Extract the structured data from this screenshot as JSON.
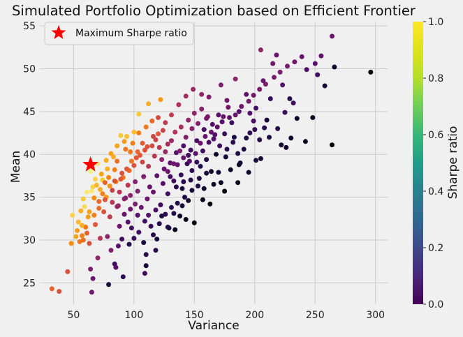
{
  "chart_data": {
    "type": "scatter",
    "title": "Simulated Portfolio Optimization based on Efficient Frontier",
    "xlabel": "Variance",
    "ylabel": "Mean",
    "xlim": [
      22,
      310
    ],
    "ylim": [
      22.5,
      55.5
    ],
    "xticks": [
      50,
      100,
      150,
      200,
      250,
      300
    ],
    "yticks": [
      25,
      30,
      35,
      40,
      45,
      50,
      55
    ],
    "grid": true,
    "legend": {
      "position": "top-left",
      "label": "Maximum Sharpe ratio"
    },
    "colorbar": {
      "label": "Sharpe ratio",
      "range": [
        0,
        1
      ],
      "ticks": [
        "0.0",
        "0.2",
        "0.4",
        "0.6",
        "0.8",
        "1.0"
      ],
      "colormap_scatter": "inferno",
      "colormap_bar": "viridis"
    },
    "highlight": {
      "x": 64,
      "y": 38.8,
      "color": "#ff0000",
      "marker": "star"
    },
    "points": [
      [
        32,
        24.3,
        0.65
      ],
      [
        38,
        24.0,
        0.6
      ],
      [
        45,
        26.3,
        0.6
      ],
      [
        65,
        23.9,
        0.3
      ],
      [
        64,
        26.6,
        0.35
      ],
      [
        66,
        25.5,
        0.3
      ],
      [
        79,
        24.8,
        0.1
      ],
      [
        70,
        27.9,
        0.4
      ],
      [
        84,
        27.2,
        0.2
      ],
      [
        85,
        26.8,
        0.25
      ],
      [
        48,
        29.6,
        0.75
      ],
      [
        55,
        29.8,
        0.7
      ],
      [
        58,
        30.0,
        0.68
      ],
      [
        52,
        30.4,
        0.8
      ],
      [
        60,
        31.5,
        0.7
      ],
      [
        49,
        32.9,
        0.9
      ],
      [
        54,
        32.1,
        0.85
      ],
      [
        57,
        31.7,
        0.82
      ],
      [
        62,
        32.7,
        0.78
      ],
      [
        56,
        33.4,
        0.82
      ],
      [
        59,
        33.9,
        0.92
      ],
      [
        61,
        35.6,
        0.95
      ],
      [
        65,
        35.7,
        0.95
      ],
      [
        64,
        38.0,
        0.97
      ],
      [
        66,
        38.3,
        0.98
      ],
      [
        70,
        38.9,
        0.94
      ],
      [
        68,
        37.1,
        0.9
      ],
      [
        74,
        37.0,
        0.88
      ],
      [
        78,
        38.3,
        0.83
      ],
      [
        83,
        39.7,
        0.82
      ],
      [
        89,
        42.2,
        0.88
      ],
      [
        94,
        42.1,
        0.86
      ],
      [
        100,
        42.6,
        0.86
      ],
      [
        104,
        44.7,
        0.88
      ],
      [
        112,
        45.9,
        0.82
      ],
      [
        122,
        46.4,
        0.78
      ],
      [
        66,
        36.2,
        0.9
      ],
      [
        72,
        35.9,
        0.82
      ],
      [
        77,
        35.0,
        0.78
      ],
      [
        80,
        36.3,
        0.77
      ],
      [
        85,
        36.8,
        0.74
      ],
      [
        91,
        37.3,
        0.7
      ],
      [
        96,
        38.1,
        0.68
      ],
      [
        98,
        39.2,
        0.7
      ],
      [
        103,
        40.3,
        0.66
      ],
      [
        107,
        41.3,
        0.63
      ],
      [
        111,
        40.9,
        0.6
      ],
      [
        116,
        42.1,
        0.56
      ],
      [
        120,
        44.3,
        0.58
      ],
      [
        126,
        43.7,
        0.52
      ],
      [
        131,
        44.6,
        0.52
      ],
      [
        137,
        45.8,
        0.48
      ],
      [
        143,
        46.8,
        0.44
      ],
      [
        149,
        47.6,
        0.42
      ],
      [
        156,
        47.0,
        0.4
      ],
      [
        162,
        46.7,
        0.36
      ],
      [
        172,
        48.1,
        0.35
      ],
      [
        177,
        46.3,
        0.32
      ],
      [
        184,
        48.8,
        0.4
      ],
      [
        193,
        47.0,
        0.28
      ],
      [
        196,
        44.8,
        0.25
      ],
      [
        199,
        43.9,
        0.22
      ],
      [
        201,
        45.4,
        0.2
      ],
      [
        205,
        52.2,
        0.4
      ],
      [
        207,
        48.6,
        0.3
      ],
      [
        213,
        46.5,
        0.18
      ],
      [
        215,
        50.6,
        0.32
      ],
      [
        218,
        51.6,
        0.3
      ],
      [
        223,
        48.1,
        0.25
      ],
      [
        229,
        46.5,
        0.15
      ],
      [
        239,
        51.4,
        0.3
      ],
      [
        252,
        49.3,
        0.2
      ],
      [
        255,
        51.5,
        0.28
      ],
      [
        258,
        48.0,
        0.1
      ],
      [
        264,
        53.8,
        0.3
      ],
      [
        266,
        50.2,
        0.08
      ],
      [
        296,
        49.6,
        0.02
      ],
      [
        264,
        41.1,
        0.01
      ],
      [
        248,
        44.3,
        0.05
      ],
      [
        242,
        41.5,
        0.05
      ],
      [
        235,
        44.2,
        0.06
      ],
      [
        230,
        41.9,
        0.07
      ],
      [
        226,
        40.8,
        0.07
      ],
      [
        222,
        41.1,
        0.08
      ],
      [
        210,
        44.0,
        0.1
      ],
      [
        205,
        39.5,
        0.08
      ],
      [
        201,
        39.3,
        0.1
      ],
      [
        193,
        41.9,
        0.12
      ],
      [
        188,
        39.0,
        0.1
      ],
      [
        183,
        42.0,
        0.12
      ],
      [
        176,
        39.7,
        0.1
      ],
      [
        172,
        36.7,
        0.06
      ],
      [
        164,
        38.0,
        0.08
      ],
      [
        160,
        37.8,
        0.1
      ],
      [
        153,
        36.3,
        0.12
      ],
      [
        148,
        35.8,
        0.1
      ],
      [
        145,
        34.6,
        0.08
      ],
      [
        140,
        36.0,
        0.12
      ],
      [
        138,
        32.8,
        0.08
      ],
      [
        134,
        31.2,
        0.06
      ],
      [
        129,
        31.4,
        0.09
      ],
      [
        123,
        32.8,
        0.12
      ],
      [
        116,
        30.6,
        0.15
      ],
      [
        110,
        28.3,
        0.15
      ],
      [
        104,
        30.9,
        0.2
      ],
      [
        98,
        31.4,
        0.2
      ],
      [
        95,
        32.1,
        0.25
      ],
      [
        90,
        30.1,
        0.2
      ],
      [
        87,
        29.3,
        0.25
      ],
      [
        81,
        28.8,
        0.35
      ],
      [
        78,
        30.4,
        0.4
      ],
      [
        72,
        30.2,
        0.5
      ],
      [
        68,
        31.8,
        0.62
      ],
      [
        75,
        33.3,
        0.6
      ],
      [
        80,
        32.7,
        0.52
      ],
      [
        86,
        33.9,
        0.45
      ],
      [
        92,
        34.8,
        0.4
      ],
      [
        97,
        35.2,
        0.38
      ],
      [
        101,
        36.8,
        0.38
      ],
      [
        108,
        37.4,
        0.35
      ],
      [
        113,
        36.2,
        0.3
      ],
      [
        119,
        37.5,
        0.28
      ],
      [
        125,
        38.3,
        0.3
      ],
      [
        130,
        39.0,
        0.26
      ],
      [
        135,
        40.2,
        0.25
      ],
      [
        141,
        41.0,
        0.24
      ],
      [
        147,
        40.5,
        0.2
      ],
      [
        152,
        41.6,
        0.22
      ],
      [
        158,
        42.9,
        0.23
      ],
      [
        165,
        43.5,
        0.24
      ],
      [
        170,
        44.6,
        0.26
      ],
      [
        175,
        42.4,
        0.18
      ],
      [
        181,
        43.7,
        0.2
      ],
      [
        187,
        45.0,
        0.24
      ],
      [
        150,
        32.0,
        0.02
      ],
      [
        163,
        34.2,
        0.02
      ],
      [
        180,
        38.2,
        0.05
      ],
      [
        168,
        40.0,
        0.08
      ],
      [
        160,
        39.4,
        0.12
      ],
      [
        155,
        38.6,
        0.14
      ],
      [
        144,
        38.9,
        0.18
      ],
      [
        139,
        37.6,
        0.18
      ],
      [
        133,
        36.9,
        0.2
      ],
      [
        128,
        35.4,
        0.2
      ],
      [
        122,
        34.1,
        0.2
      ],
      [
        118,
        33.5,
        0.22
      ],
      [
        112,
        32.9,
        0.26
      ],
      [
        106,
        33.8,
        0.3
      ],
      [
        101,
        34.2,
        0.34
      ],
      [
        95,
        36.4,
        0.5
      ],
      [
        90,
        37.8,
        0.6
      ],
      [
        86,
        39.2,
        0.68
      ],
      [
        93,
        40.6,
        0.7
      ],
      [
        99,
        41.3,
        0.72
      ],
      [
        104,
        42.5,
        0.72
      ],
      [
        110,
        43.2,
        0.7
      ],
      [
        115,
        43.9,
        0.66
      ],
      [
        118,
        41.7,
        0.55
      ],
      [
        124,
        42.8,
        0.55
      ],
      [
        128,
        41.2,
        0.45
      ],
      [
        134,
        42.6,
        0.48
      ],
      [
        139,
        43.2,
        0.46
      ],
      [
        145,
        44.0,
        0.4
      ],
      [
        150,
        44.8,
        0.4
      ],
      [
        156,
        45.3,
        0.38
      ],
      [
        161,
        44.4,
        0.34
      ],
      [
        166,
        41.8,
        0.25
      ],
      [
        171,
        41.0,
        0.2
      ],
      [
        177,
        40.6,
        0.15
      ],
      [
        182,
        41.4,
        0.16
      ],
      [
        186,
        40.1,
        0.14
      ],
      [
        191,
        40.6,
        0.12
      ],
      [
        196,
        42.5,
        0.16
      ],
      [
        200,
        42.9,
        0.18
      ],
      [
        204,
        41.7,
        0.14
      ],
      [
        208,
        43.1,
        0.15
      ],
      [
        212,
        42.0,
        0.12
      ],
      [
        219,
        43.0,
        0.14
      ],
      [
        225,
        44.9,
        0.18
      ],
      [
        232,
        46.0,
        0.2
      ],
      [
        187,
        38.8,
        0.08
      ],
      [
        170,
        37.9,
        0.1
      ],
      [
        166,
        36.5,
        0.06
      ],
      [
        158,
        36.0,
        0.08
      ],
      [
        154,
        37.2,
        0.12
      ],
      [
        147,
        37.0,
        0.14
      ],
      [
        142,
        35.0,
        0.12
      ],
      [
        136,
        34.3,
        0.14
      ],
      [
        131,
        33.8,
        0.16
      ],
      [
        126,
        33.0,
        0.16
      ],
      [
        121,
        31.9,
        0.15
      ],
      [
        114,
        31.6,
        0.18
      ],
      [
        109,
        32.2,
        0.2
      ],
      [
        103,
        32.9,
        0.24
      ],
      [
        97,
        33.6,
        0.3
      ],
      [
        93,
        34.9,
        0.36
      ],
      [
        88,
        35.6,
        0.5
      ],
      [
        84,
        36.9,
        0.6
      ],
      [
        82,
        34.4,
        0.5
      ],
      [
        76,
        34.7,
        0.62
      ],
      [
        71,
        33.7,
        0.68
      ],
      [
        67,
        34.9,
        0.75
      ],
      [
        73,
        37.7,
        0.8
      ],
      [
        77,
        39.3,
        0.82
      ],
      [
        81,
        40.1,
        0.8
      ],
      [
        86,
        41.0,
        0.8
      ],
      [
        92,
        41.5,
        0.78
      ],
      [
        97,
        40.3,
        0.7
      ],
      [
        102,
        39.6,
        0.62
      ],
      [
        107,
        39.1,
        0.56
      ],
      [
        112,
        38.6,
        0.5
      ],
      [
        117,
        39.8,
        0.5
      ],
      [
        121,
        40.8,
        0.5
      ],
      [
        126,
        40.3,
        0.42
      ],
      [
        131,
        41.6,
        0.42
      ],
      [
        136,
        38.8,
        0.28
      ],
      [
        141,
        39.6,
        0.3
      ],
      [
        146,
        39.2,
        0.25
      ],
      [
        151,
        40.1,
        0.27
      ],
      [
        155,
        41.3,
        0.3
      ],
      [
        159,
        42.1,
        0.3
      ],
      [
        164,
        42.6,
        0.3
      ],
      [
        169,
        43.2,
        0.28
      ],
      [
        174,
        44.4,
        0.3
      ],
      [
        178,
        45.5,
        0.32
      ],
      [
        120,
        42.4,
        0.62
      ],
      [
        115,
        41.0,
        0.58
      ],
      [
        109,
        40.5,
        0.6
      ],
      [
        105,
        39.9,
        0.62
      ],
      [
        100,
        38.7,
        0.6
      ],
      [
        94,
        38.3,
        0.62
      ],
      [
        89,
        37.1,
        0.62
      ],
      [
        84,
        38.2,
        0.72
      ],
      [
        79,
        37.3,
        0.74
      ],
      [
        74,
        35.4,
        0.72
      ],
      [
        69,
        36.4,
        0.84
      ],
      [
        63,
        33.3,
        0.8
      ],
      [
        58,
        34.8,
        0.88
      ],
      [
        53,
        31.1,
        0.78
      ],
      [
        57,
        30.5,
        0.72
      ],
      [
        63,
        29.6,
        0.6
      ],
      [
        91,
        25.7,
        0.15
      ],
      [
        109,
        26.1,
        0.2
      ],
      [
        118,
        28.8,
        0.15
      ],
      [
        128,
        31.5,
        0.12
      ],
      [
        145,
        39.9,
        0.2
      ],
      [
        175,
        35.7,
        0.02
      ],
      [
        186,
        36.7,
        0.05
      ],
      [
        195,
        37.9,
        0.08
      ],
      [
        157,
        34.7,
        0.05
      ],
      [
        140,
        34.0,
        0.1
      ],
      [
        133,
        33.1,
        0.14
      ],
      [
        119,
        30.1,
        0.1
      ],
      [
        108,
        29.7,
        0.12
      ],
      [
        96,
        29.5,
        0.15
      ],
      [
        88,
        31.6,
        0.3
      ],
      [
        103,
        35.7,
        0.36
      ],
      [
        111,
        34.8,
        0.3
      ],
      [
        116,
        35.6,
        0.3
      ],
      [
        124,
        36.6,
        0.25
      ],
      [
        130,
        37.4,
        0.22
      ],
      [
        135,
        36.2,
        0.16
      ],
      [
        141,
        36.8,
        0.15
      ],
      [
        148,
        38.1,
        0.16
      ],
      [
        152,
        39.1,
        0.18
      ],
      [
        157,
        40.4,
        0.2
      ],
      [
        162,
        41.4,
        0.22
      ],
      [
        167,
        42.3,
        0.24
      ],
      [
        173,
        43.8,
        0.26
      ],
      [
        179,
        44.3,
        0.28
      ],
      [
        184,
        44.6,
        0.3
      ],
      [
        189,
        45.6,
        0.3
      ],
      [
        195,
        46.2,
        0.32
      ],
      [
        199,
        46.9,
        0.32
      ],
      [
        204,
        47.6,
        0.34
      ],
      [
        209,
        48.2,
        0.35
      ],
      [
        216,
        49.0,
        0.35
      ],
      [
        221,
        49.6,
        0.34
      ],
      [
        227,
        50.3,
        0.34
      ],
      [
        233,
        50.8,
        0.32
      ],
      [
        243,
        49.9,
        0.24
      ],
      [
        250,
        50.6,
        0.26
      ],
      [
        123,
        39.4,
        0.38
      ],
      [
        128,
        38.0,
        0.3
      ],
      [
        133,
        38.9,
        0.32
      ],
      [
        138,
        40.4,
        0.35
      ],
      [
        143,
        42.0,
        0.36
      ],
      [
        148,
        43.0,
        0.38
      ],
      [
        153,
        43.6,
        0.36
      ],
      [
        160,
        44.2,
        0.34
      ],
      [
        143,
        32.4,
        0.05
      ],
      [
        110,
        27.0,
        0.1
      ],
      [
        100,
        30.2,
        0.18
      ],
      [
        92,
        33.0,
        0.3
      ],
      [
        87,
        34.0,
        0.4
      ],
      [
        82,
        35.8,
        0.55
      ],
      [
        76,
        36.7,
        0.65
      ],
      [
        71,
        34.5,
        0.66
      ],
      [
        67,
        32.9,
        0.72
      ],
      [
        61,
        30.8,
        0.65
      ]
    ]
  }
}
